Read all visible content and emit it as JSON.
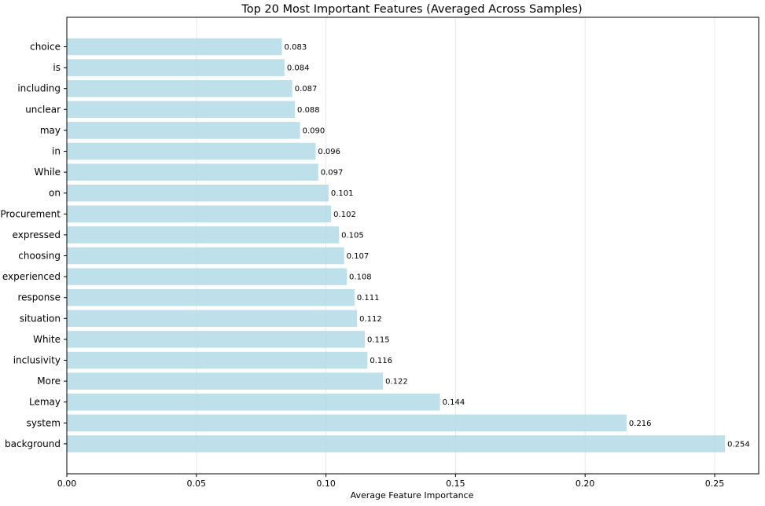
{
  "chart_data": {
    "type": "bar",
    "orientation": "horizontal",
    "title": "Top 20 Most Important Features (Averaged Across Samples)",
    "xlabel": "Average Feature Importance",
    "ylabel": "",
    "xlim": [
      0,
      0.267
    ],
    "xticks": [
      0.0,
      0.05,
      0.1,
      0.15,
      0.2,
      0.25
    ],
    "xtick_labels": [
      "0.00",
      "0.05",
      "0.10",
      "0.15",
      "0.20",
      "0.25"
    ],
    "grid": "x",
    "bar_color": "#add8e6",
    "categories": [
      "choice",
      "is",
      "including",
      "unclear",
      "may",
      "in",
      "While",
      "on",
      "Procurement",
      "expressed",
      "choosing",
      "experienced",
      "response",
      "situation",
      "White",
      "inclusivity",
      "More",
      "Lemay",
      "system",
      "background"
    ],
    "values": [
      0.083,
      0.084,
      0.087,
      0.088,
      0.09,
      0.096,
      0.097,
      0.101,
      0.102,
      0.105,
      0.107,
      0.108,
      0.111,
      0.112,
      0.115,
      0.116,
      0.122,
      0.144,
      0.216,
      0.254
    ],
    "value_labels": [
      "0.083",
      "0.084",
      "0.087",
      "0.088",
      "0.090",
      "0.096",
      "0.097",
      "0.101",
      "0.102",
      "0.105",
      "0.107",
      "0.108",
      "0.111",
      "0.112",
      "0.115",
      "0.116",
      "0.122",
      "0.144",
      "0.216",
      "0.254"
    ]
  }
}
